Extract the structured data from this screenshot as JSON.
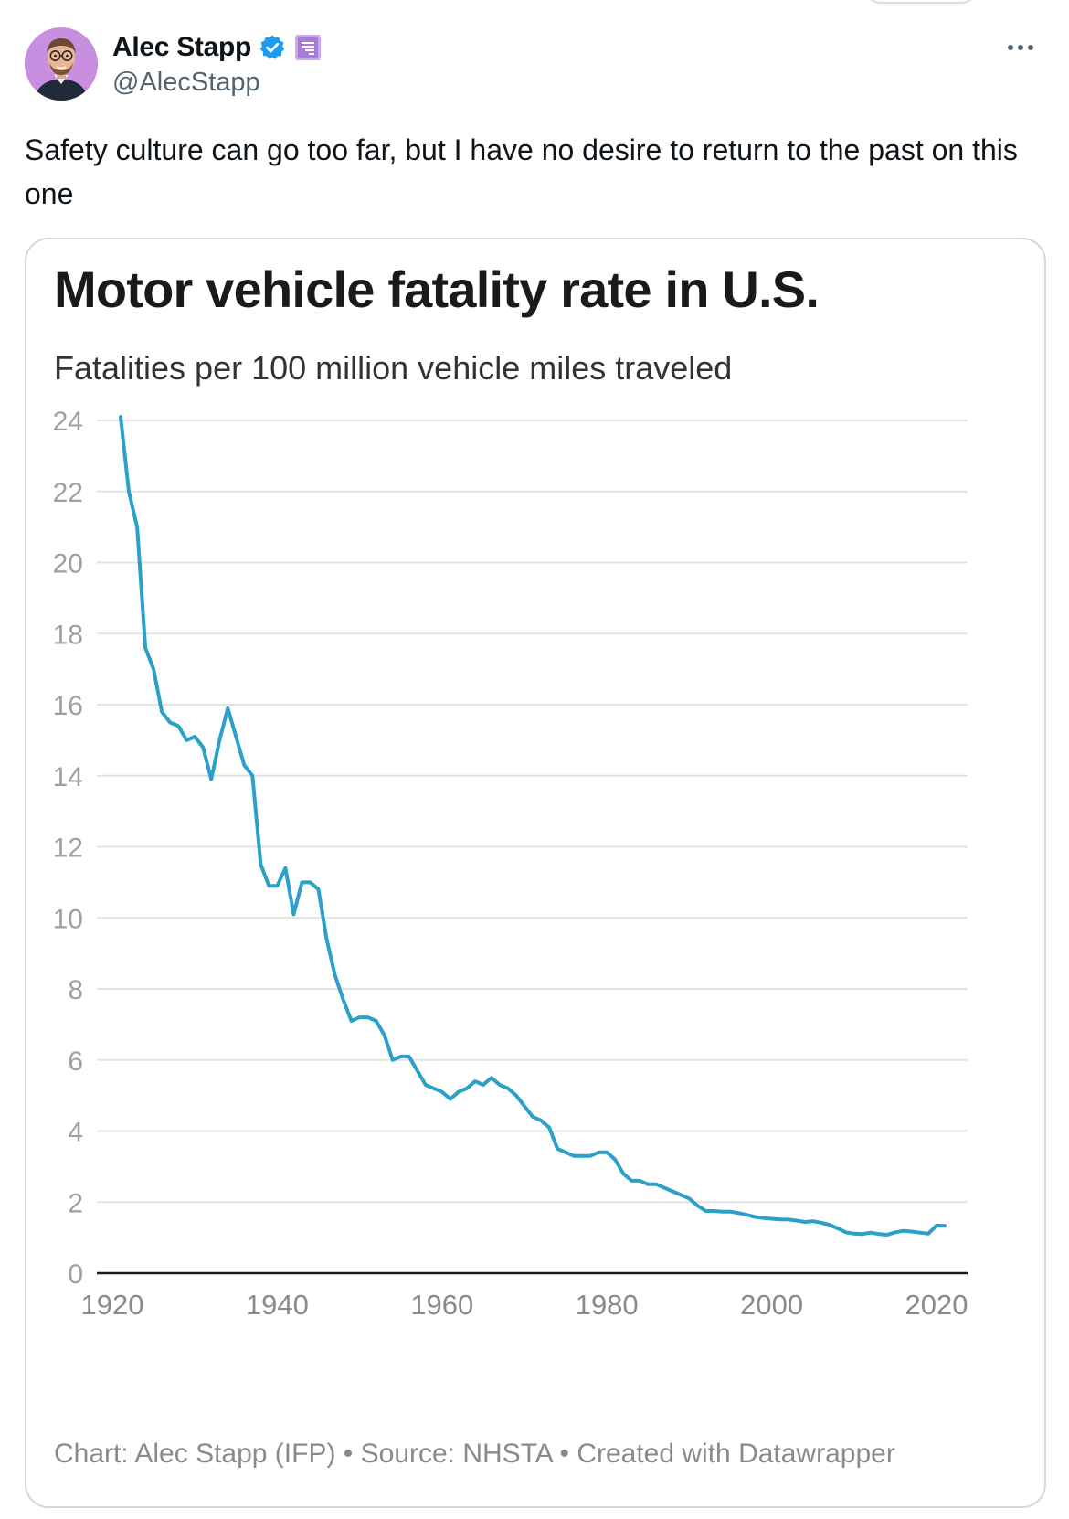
{
  "tweet": {
    "author_name": "Alec Stapp",
    "handle": "@AlecStapp",
    "text": "Safety culture can go too far, but I have no desire to return to the past on this one"
  },
  "icons": {
    "verified": "verified-badge-icon",
    "affiliate": "affiliate-badge-icon",
    "more": "more-dots-icon"
  },
  "colors": {
    "verified": "#1d9bf0",
    "affiliate": "#a87bd6",
    "series": "#2ca0c8"
  },
  "chart_data": {
    "type": "line",
    "title": "Motor vehicle fatality rate in U.S.",
    "subtitle": "Fatalities per 100 million vehicle miles traveled",
    "footer": "Chart: Alec Stapp (IFP) • Source: NHSTA • Created with Datawrapper",
    "xlabel": "",
    "ylabel": "",
    "xlim": [
      1920,
      2024
    ],
    "ylim": [
      0,
      24
    ],
    "x_ticks": [
      "1920",
      "1940",
      "1960",
      "1980",
      "2000",
      "2020"
    ],
    "y_ticks": [
      "0",
      "2",
      "4",
      "6",
      "8",
      "10",
      "12",
      "14",
      "16",
      "18",
      "20",
      "22",
      "24"
    ],
    "grid": true,
    "series": [
      {
        "name": "Fatality rate",
        "x": [
          1921,
          1922,
          1923,
          1924,
          1925,
          1926,
          1927,
          1928,
          1929,
          1930,
          1931,
          1932,
          1933,
          1934,
          1935,
          1936,
          1937,
          1938,
          1939,
          1940,
          1941,
          1942,
          1943,
          1944,
          1945,
          1946,
          1947,
          1948,
          1949,
          1950,
          1951,
          1952,
          1953,
          1954,
          1955,
          1956,
          1957,
          1958,
          1959,
          1960,
          1961,
          1962,
          1963,
          1964,
          1965,
          1966,
          1967,
          1968,
          1969,
          1970,
          1971,
          1972,
          1973,
          1974,
          1975,
          1976,
          1977,
          1978,
          1979,
          1980,
          1981,
          1982,
          1983,
          1984,
          1985,
          1986,
          1987,
          1988,
          1989,
          1990,
          1991,
          1992,
          1993,
          1994,
          1995,
          1996,
          1997,
          1998,
          1999,
          2000,
          2001,
          2002,
          2003,
          2004,
          2005,
          2006,
          2007,
          2008,
          2009,
          2010,
          2011,
          2012,
          2013,
          2014,
          2015,
          2016,
          2017,
          2018,
          2019,
          2020,
          2021
        ],
        "values": [
          24.1,
          22.0,
          21.0,
          17.6,
          17.0,
          15.8,
          15.5,
          15.4,
          15.0,
          15.1,
          14.8,
          13.9,
          15.0,
          15.9,
          15.1,
          14.3,
          14.0,
          11.5,
          10.9,
          10.9,
          11.4,
          10.1,
          11.0,
          11.0,
          10.8,
          9.4,
          8.4,
          7.7,
          7.1,
          7.2,
          7.2,
          7.1,
          6.7,
          6.0,
          6.1,
          6.1,
          5.7,
          5.3,
          5.2,
          5.1,
          4.9,
          5.1,
          5.2,
          5.4,
          5.3,
          5.5,
          5.3,
          5.2,
          5.0,
          4.7,
          4.4,
          4.3,
          4.1,
          3.5,
          3.4,
          3.3,
          3.3,
          3.3,
          3.4,
          3.4,
          3.2,
          2.8,
          2.6,
          2.6,
          2.5,
          2.5,
          2.4,
          2.3,
          2.2,
          2.1,
          1.9,
          1.75,
          1.75,
          1.73,
          1.73,
          1.69,
          1.64,
          1.58,
          1.55,
          1.53,
          1.51,
          1.51,
          1.48,
          1.44,
          1.46,
          1.42,
          1.36,
          1.26,
          1.15,
          1.11,
          1.1,
          1.14,
          1.1,
          1.08,
          1.15,
          1.19,
          1.17,
          1.14,
          1.11,
          1.34,
          1.33
        ]
      }
    ]
  }
}
